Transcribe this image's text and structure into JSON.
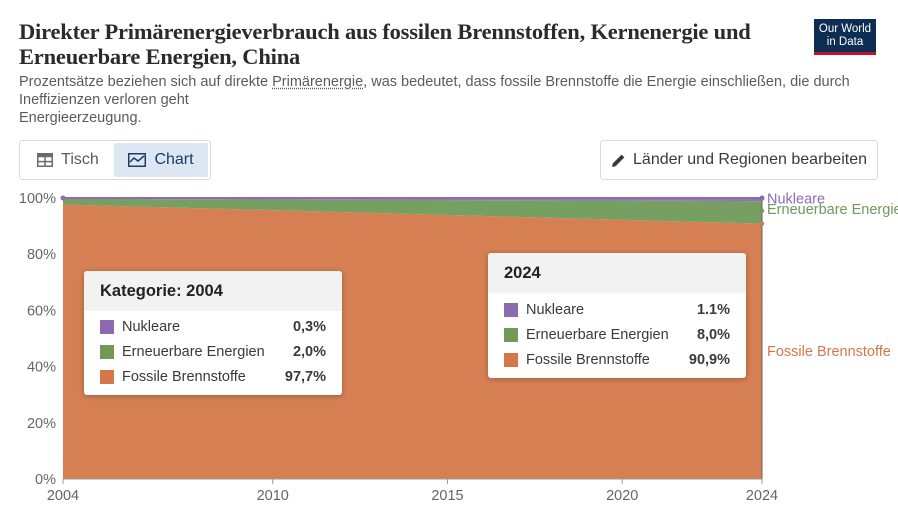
{
  "header": {
    "title": "Direkter Primärenergieverbrauch aus fossilen Brennstoffen, Kernenergie und Erneuerbare Energien, China",
    "subtitle_part1": "Prozentsätze beziehen sich auf direkte ",
    "subtitle_link": "Primärenergie",
    "subtitle_part2": ", was bedeutet, dass fossile Brennstoffe die Energie einschließen, die durch Ineffizienzen verloren geht",
    "subtitle_line2": "Energieerzeugung.",
    "logo_line1": "Our World",
    "logo_line2": "in Data"
  },
  "tabs": [
    {
      "label": "Tisch",
      "icon": "table-icon",
      "active": false
    },
    {
      "label": "Chart",
      "icon": "chart-icon",
      "active": true
    }
  ],
  "edit_button": {
    "label": "Länder und Regionen bearbeiten",
    "icon": "pencil-icon"
  },
  "colors": {
    "nuclear": "#8c6bb1",
    "renewables": "#6f9a5a",
    "fossil": "#d4784a"
  },
  "chart_data": {
    "type": "area",
    "stacked": true,
    "x": [
      2004,
      2024
    ],
    "x_ticks": [
      "2004",
      "2010",
      "2015",
      "2020",
      "2024"
    ],
    "y_ticks": [
      "0%",
      "20%",
      "40%",
      "60%",
      "80%",
      "100%"
    ],
    "ylim": [
      0,
      100
    ],
    "series": [
      {
        "name": "Fossile Brennstoffe",
        "values": [
          97.7,
          90.9
        ],
        "color": "#d4784a"
      },
      {
        "name": "Erneuerbare Energien",
        "values": [
          2.0,
          8.0
        ],
        "color": "#6f9a5a"
      },
      {
        "name": "Nukleare",
        "values": [
          0.3,
          1.1
        ],
        "color": "#8c6bb1"
      }
    ],
    "end_labels": [
      "Nukleare",
      "Erneuerbare Energie",
      "Fossile Brennstoffe"
    ]
  },
  "tooltips": [
    {
      "title": "Kategorie: 2004",
      "rows": [
        {
          "name": "Nukleare",
          "value": "0,3%",
          "color": "#8c6bb1"
        },
        {
          "name": "Erneuerbare Energien",
          "value": "2,0%",
          "color": "#6f9a5a"
        },
        {
          "name": "Fossile Brennstoffe",
          "value": "97,7%",
          "color": "#d4784a"
        }
      ]
    },
    {
      "title": "2024",
      "rows": [
        {
          "name": "Nukleare",
          "value": "1.1%",
          "color": "#8c6bb1"
        },
        {
          "name": "Erneuerbare Energien",
          "value": "8,0%",
          "color": "#6f9a5a"
        },
        {
          "name": "Fossile Brennstoffe",
          "value": "90,9%",
          "color": "#d4784a"
        }
      ]
    }
  ]
}
